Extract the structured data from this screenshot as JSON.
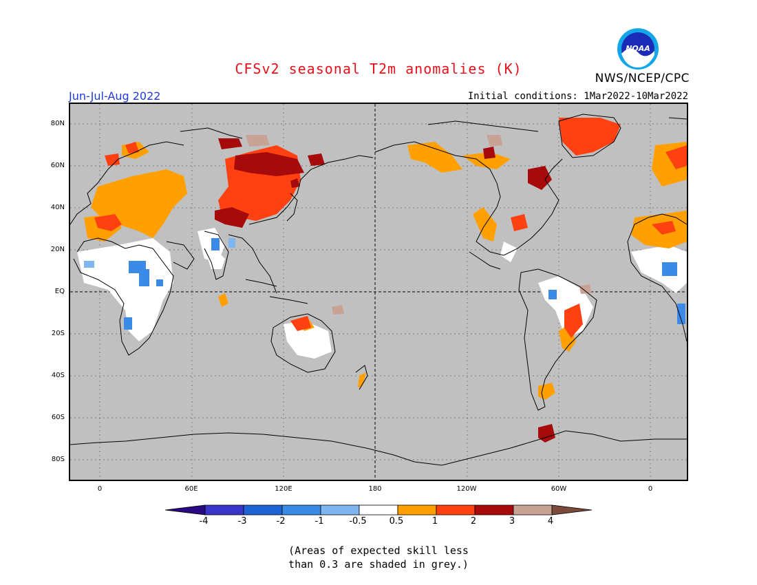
{
  "title": "CFSv2 seasonal T2m anomalies (K)",
  "organization": "NWS/NCEP/CPC",
  "season": "Jun-Jul-Aug 2022",
  "initial_conditions": "Initial conditions: 1Mar2022-10Mar2022",
  "logo": {
    "text": "NOAA",
    "icon": "noaa-logo-icon"
  },
  "latitude_labels": [
    "80N",
    "60N",
    "40N",
    "20N",
    "EQ",
    "20S",
    "40S",
    "60S",
    "80S"
  ],
  "longitude_labels": [
    "0",
    "60E",
    "120E",
    "180",
    "120W",
    "60W",
    "0"
  ],
  "colorbar": {
    "colors": [
      "#2a0a82",
      "#3b34c8",
      "#1f62d4",
      "#3b8be6",
      "#7fb6f0",
      "#ffffff",
      "#ffa000",
      "#ff4010",
      "#a60a0a",
      "#c8a294",
      "#7a4a3a"
    ],
    "labels": [
      "-4",
      "-3",
      "-2",
      "-1",
      "-0.5",
      "0.5",
      "1",
      "2",
      "3",
      "4"
    ]
  },
  "note": {
    "line1": "(Areas of expected skill less",
    "line2": "than 0.3 are shaded in grey.)"
  }
}
